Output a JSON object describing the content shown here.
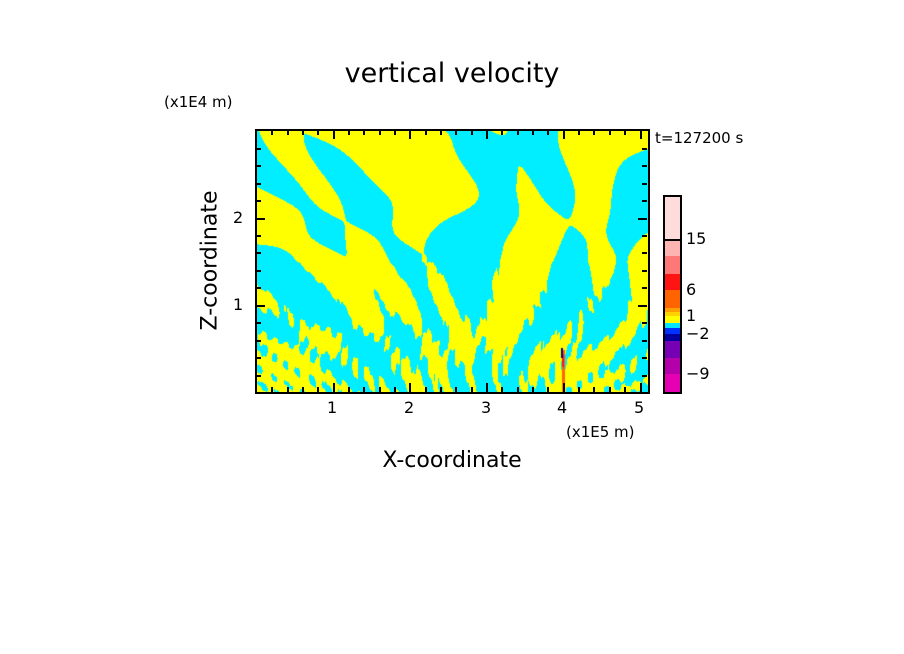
{
  "chart_data": {
    "type": "heatmap",
    "title": "vertical velocity",
    "xlabel": "X-coordinate",
    "ylabel": "Z-coordinate",
    "x_unit": "(x1E5 m)",
    "y_unit": "(x1E4 m)",
    "time_label": "t=127200 s",
    "xlim": [
      0,
      5.12
    ],
    "ylim": [
      0,
      3.0
    ],
    "x_ticks": [
      "1",
      "2",
      "3",
      "4",
      "5"
    ],
    "y_ticks": [
      "1",
      "2"
    ],
    "colorbar": {
      "levels": [
        -12,
        -9,
        -6,
        -3,
        -2,
        -1,
        0,
        1,
        2,
        3,
        6,
        9,
        12,
        15
      ],
      "tick_labels": [
        "15",
        "6",
        "1",
        "−2",
        "−9"
      ],
      "colors": [
        "#e600b4",
        "#b400aa",
        "#7800b4",
        "#0000a0",
        "#0032ff",
        "#00e6ff",
        "#ffff00",
        "#ffd200",
        "#ffa000",
        "#ff6400",
        "#ff1414",
        "#ff7878",
        "#ffb4b4",
        "#ffdcdc"
      ]
    },
    "dominant_colors": {
      "positive": "#ffff00",
      "negative": "#00eeff"
    }
  }
}
